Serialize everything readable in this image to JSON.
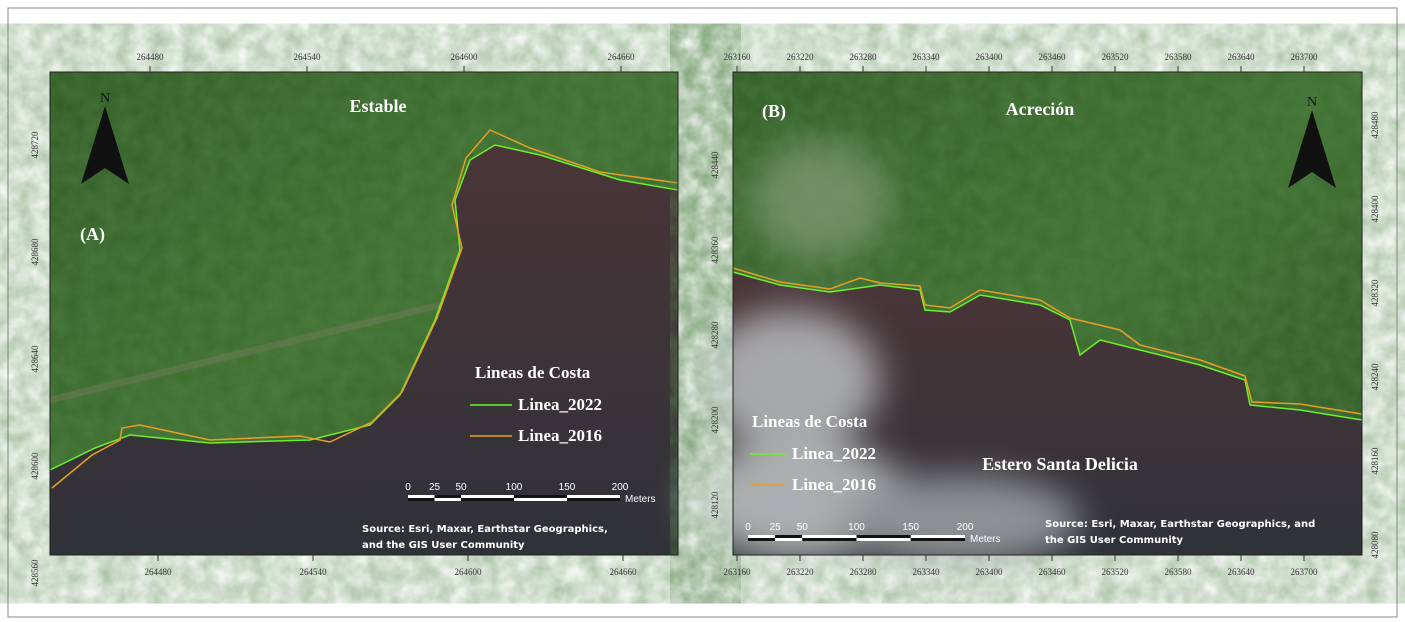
{
  "panels": [
    {
      "label": "(A)",
      "title": "Estable",
      "north": "N",
      "top_ticks": [
        264480,
        264540,
        264600,
        264660
      ],
      "bottom_ticks": [
        264480,
        264540,
        264600,
        264660
      ],
      "left_ticks": [
        428720,
        428680,
        428640,
        428600,
        428560
      ],
      "legend": {
        "title": "Lineas de Costa",
        "items": [
          "Linea_2022",
          "Linea_2016"
        ]
      },
      "scale": {
        "ticks": [
          "0",
          "25",
          "50",
          "100",
          "150",
          "200"
        ],
        "unit": "Meters"
      },
      "source": [
        "Source: Esri, Maxar, Earthstar Geographics,",
        "and the GIS User Community"
      ]
    },
    {
      "label": "(B)",
      "title": "Acreción",
      "north": "N",
      "place": "Estero Santa Delicia",
      "top_ticks": [
        263160,
        263220,
        263280,
        263340,
        263400,
        263460,
        263520,
        263580,
        263640,
        263700
      ],
      "bottom_ticks": [
        263160,
        263220,
        263280,
        263340,
        263400,
        263460,
        263520,
        263580,
        263640,
        263700
      ],
      "left_ticks": [
        428440,
        428360,
        428280,
        428200,
        428120
      ],
      "right_ticks": [
        428480,
        428400,
        428320,
        428240,
        428160,
        428080
      ],
      "legend": {
        "title": "Lineas de Costa",
        "items": [
          "Linea_2022",
          "Linea_2016"
        ]
      },
      "scale": {
        "ticks": [
          "0",
          "25",
          "50",
          "100",
          "150",
          "200"
        ],
        "unit": "Meters"
      },
      "source": [
        "Source: Esri, Maxar, Earthstar Geographics, and",
        "the GIS User Community"
      ]
    }
  ]
}
